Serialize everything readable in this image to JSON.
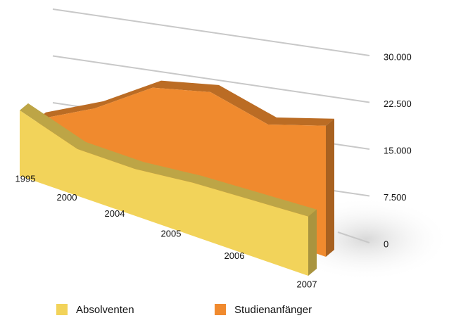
{
  "chart_data": {
    "type": "area3d",
    "categories": [
      "1995",
      "2000",
      "2004",
      "2005",
      "2006",
      "2007"
    ],
    "series": [
      {
        "name": "Absolventen",
        "color": "#f2d35a",
        "values": [
          10500,
          7500,
          7500,
          8500,
          9000,
          9500
        ]
      },
      {
        "name": "Studienanfänger",
        "color": "#f08a2e",
        "values": [
          6000,
          11000,
          17500,
          20000,
          18000,
          21000
        ]
      }
    ],
    "ylim": [
      0,
      30000
    ],
    "yticks": [
      0,
      {
        "value": 7500,
        "label": "7.500"
      },
      {
        "value": 15000,
        "label": "15.000"
      },
      {
        "value": 22500,
        "label": "22.500"
      },
      {
        "value": 30000,
        "label": "30.000"
      }
    ],
    "grid": true
  }
}
